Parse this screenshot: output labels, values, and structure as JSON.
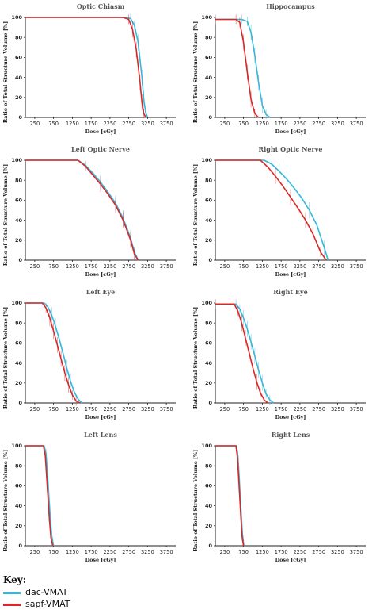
{
  "key": {
    "title": "Key:",
    "items": [
      {
        "label": "dac-VMAT",
        "color": "#3bb6d8"
      },
      {
        "label": "sapf-VMAT",
        "color": "#d62a2a"
      }
    ]
  },
  "chart_data": [
    {
      "type": "line",
      "title": "Optic Chiasm",
      "xlabel": "Dose [cGy]",
      "ylabel": "Ratio of Total Structure Volume [%]",
      "xlim": [
        0,
        4000
      ],
      "ylim": [
        0,
        100
      ],
      "xticks": [
        250,
        750,
        1250,
        1750,
        2250,
        2750,
        3250,
        3750
      ],
      "yticks": [
        0,
        20,
        40,
        60,
        80,
        100
      ],
      "series": [
        {
          "name": "dac-VMAT",
          "color": "#3bb6d8",
          "x": [
            0,
            2600,
            2800,
            2900,
            3000,
            3100,
            3150,
            3200,
            3250
          ],
          "y": [
            100,
            100,
            99,
            92,
            75,
            40,
            18,
            5,
            0
          ]
        },
        {
          "name": "sapf-VMAT",
          "color": "#d62a2a",
          "x": [
            0,
            2600,
            2750,
            2850,
            2950,
            3050,
            3100,
            3150,
            3200
          ],
          "y": [
            100,
            100,
            98,
            88,
            68,
            35,
            15,
            4,
            0
          ]
        }
      ]
    },
    {
      "type": "line",
      "title": "Hippocampus",
      "xlabel": "Dose [cGy]",
      "ylabel": "Ratio of Total Structure Volume [%]",
      "xlim": [
        0,
        4000
      ],
      "ylim": [
        0,
        100
      ],
      "xticks": [
        250,
        750,
        1250,
        1750,
        2250,
        2750,
        3250,
        3750
      ],
      "yticks": [
        0,
        20,
        40,
        60,
        80,
        100
      ],
      "series": [
        {
          "name": "dac-VMAT",
          "color": "#3bb6d8",
          "x": [
            0,
            700,
            850,
            950,
            1050,
            1150,
            1250,
            1350,
            1450
          ],
          "y": [
            98,
            98,
            96,
            85,
            62,
            35,
            12,
            3,
            0
          ]
        },
        {
          "name": "sapf-VMAT",
          "color": "#d62a2a",
          "x": [
            0,
            550,
            650,
            750,
            850,
            950,
            1050,
            1150
          ],
          "y": [
            98,
            98,
            95,
            75,
            45,
            18,
            4,
            0
          ]
        }
      ]
    },
    {
      "type": "line",
      "title": "Left Optic Nerve",
      "xlabel": "Dose [cGy]",
      "ylabel": "Ratio of Total Structure Volume [%]",
      "xlim": [
        0,
        4000
      ],
      "ylim": [
        0,
        100
      ],
      "xticks": [
        250,
        750,
        1250,
        1750,
        2250,
        2750,
        3250,
        3750
      ],
      "yticks": [
        0,
        20,
        40,
        60,
        80,
        100
      ],
      "series": [
        {
          "name": "dac-VMAT",
          "color": "#3bb6d8",
          "x": [
            0,
            1400,
            1600,
            1800,
            2000,
            2200,
            2400,
            2600,
            2800,
            2900,
            3000
          ],
          "y": [
            100,
            100,
            95,
            87,
            78,
            68,
            57,
            42,
            22,
            8,
            0
          ]
        },
        {
          "name": "sapf-VMAT",
          "color": "#d62a2a",
          "x": [
            0,
            1400,
            1600,
            1800,
            2000,
            2200,
            2400,
            2600,
            2800,
            2900,
            3000
          ],
          "y": [
            100,
            100,
            94,
            85,
            76,
            66,
            55,
            40,
            20,
            6,
            0
          ]
        }
      ]
    },
    {
      "type": "line",
      "title": "Right Optic Nerve",
      "xlabel": "Dose [cGy]",
      "ylabel": "Ratio of Total Structure Volume [%]",
      "xlim": [
        0,
        4000
      ],
      "ylim": [
        0,
        100
      ],
      "xticks": [
        250,
        750,
        1250,
        1750,
        2250,
        2750,
        3250,
        3750
      ],
      "yticks": [
        0,
        20,
        40,
        60,
        80,
        100
      ],
      "series": [
        {
          "name": "dac-VMAT",
          "color": "#3bb6d8",
          "x": [
            0,
            1300,
            1500,
            1700,
            1900,
            2100,
            2300,
            2500,
            2700,
            2900,
            3000
          ],
          "y": [
            100,
            100,
            96,
            89,
            81,
            72,
            62,
            50,
            35,
            12,
            0
          ]
        },
        {
          "name": "sapf-VMAT",
          "color": "#d62a2a",
          "x": [
            0,
            1200,
            1400,
            1600,
            1800,
            2000,
            2200,
            2400,
            2600,
            2800,
            2950
          ],
          "y": [
            100,
            100,
            93,
            84,
            74,
            63,
            52,
            40,
            26,
            8,
            0
          ]
        }
      ]
    },
    {
      "type": "line",
      "title": "Left Eye",
      "xlabel": "Dose [cGy]",
      "ylabel": "Ratio of Total Structure Volume [%]",
      "xlim": [
        0,
        4000
      ],
      "ylim": [
        0,
        100
      ],
      "xticks": [
        250,
        750,
        1250,
        1750,
        2250,
        2750,
        3250,
        3750
      ],
      "yticks": [
        0,
        20,
        40,
        60,
        80,
        100
      ],
      "series": [
        {
          "name": "dac-VMAT",
          "color": "#3bb6d8",
          "x": [
            0,
            500,
            600,
            700,
            800,
            900,
            1000,
            1100,
            1200,
            1300,
            1400,
            1500
          ],
          "y": [
            100,
            100,
            96,
            88,
            77,
            64,
            50,
            35,
            22,
            11,
            4,
            0
          ]
        },
        {
          "name": "sapf-VMAT",
          "color": "#d62a2a",
          "x": [
            0,
            450,
            550,
            650,
            750,
            850,
            950,
            1050,
            1150,
            1250,
            1350,
            1450
          ],
          "y": [
            100,
            100,
            95,
            85,
            72,
            58,
            44,
            30,
            18,
            8,
            2,
            0
          ]
        }
      ]
    },
    {
      "type": "line",
      "title": "Right Eye",
      "xlabel": "Dose [cGy]",
      "ylabel": "Ratio of Total Structure Volume [%]",
      "xlim": [
        0,
        4000
      ],
      "ylim": [
        0,
        100
      ],
      "xticks": [
        250,
        750,
        1250,
        1750,
        2250,
        2750,
        3250,
        3750
      ],
      "yticks": [
        0,
        20,
        40,
        60,
        80,
        100
      ],
      "series": [
        {
          "name": "dac-VMAT",
          "color": "#3bb6d8",
          "x": [
            0,
            550,
            650,
            750,
            850,
            950,
            1050,
            1150,
            1250,
            1350,
            1450,
            1550
          ],
          "y": [
            99,
            99,
            94,
            85,
            74,
            61,
            47,
            33,
            20,
            9,
            3,
            0
          ]
        },
        {
          "name": "sapf-VMAT",
          "color": "#d62a2a",
          "x": [
            0,
            500,
            600,
            700,
            800,
            900,
            1000,
            1100,
            1200,
            1300,
            1400
          ],
          "y": [
            99,
            99,
            92,
            80,
            65,
            50,
            35,
            21,
            10,
            3,
            0
          ]
        }
      ]
    },
    {
      "type": "line",
      "title": "Left Lens",
      "xlabel": "Dose [cGy]",
      "ylabel": "Ratio of Total Structure Volume [%]",
      "xlim": [
        0,
        4000
      ],
      "ylim": [
        0,
        100
      ],
      "xticks": [
        250,
        750,
        1250,
        1750,
        2250,
        2750,
        3250,
        3750
      ],
      "yticks": [
        0,
        20,
        40,
        60,
        80,
        100
      ],
      "series": [
        {
          "name": "dac-VMAT",
          "color": "#3bb6d8",
          "x": [
            0,
            500,
            550,
            600,
            650,
            700,
            750
          ],
          "y": [
            100,
            100,
            92,
            65,
            35,
            10,
            0
          ]
        },
        {
          "name": "sapf-VMAT",
          "color": "#d62a2a",
          "x": [
            0,
            480,
            530,
            580,
            630,
            680,
            730
          ],
          "y": [
            100,
            100,
            90,
            62,
            32,
            8,
            0
          ]
        }
      ]
    },
    {
      "type": "line",
      "title": "Right Lens",
      "xlabel": "Dose [cGy]",
      "ylabel": "Ratio of Total Structure Volume [%]",
      "xlim": [
        0,
        4000
      ],
      "ylim": [
        0,
        100
      ],
      "xticks": [
        250,
        750,
        1250,
        1750,
        2250,
        2750,
        3250,
        3750
      ],
      "yticks": [
        0,
        20,
        40,
        60,
        80,
        100
      ],
      "series": [
        {
          "name": "dac-VMAT",
          "color": "#3bb6d8",
          "x": [
            0,
            560,
            600,
            640,
            680,
            720,
            760
          ],
          "y": [
            100,
            100,
            90,
            65,
            38,
            12,
            0
          ]
        },
        {
          "name": "sapf-VMAT",
          "color": "#d62a2a",
          "x": [
            0,
            550,
            590,
            630,
            670,
            710,
            750
          ],
          "y": [
            100,
            100,
            88,
            62,
            35,
            10,
            0
          ]
        }
      ]
    }
  ]
}
